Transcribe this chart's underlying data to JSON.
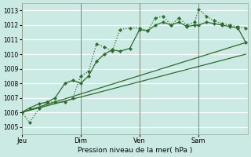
{
  "background_color": "#cceae4",
  "grid_color": "#ffffff",
  "line_color": "#2d6a2d",
  "xlabel": "Pression niveau de la mer( hPa )",
  "ylim": [
    1004.5,
    1013.5
  ],
  "yticks": [
    1005,
    1006,
    1007,
    1008,
    1009,
    1010,
    1011,
    1012,
    1013
  ],
  "xtick_labels": [
    "Jeu",
    "Dim",
    "Ven",
    "Sam"
  ],
  "xtick_positions": [
    0,
    3.0,
    6.0,
    9.0
  ],
  "xlim": [
    0,
    11.5
  ],
  "series1_x": [
    0.0,
    0.4,
    0.9,
    1.3,
    1.7,
    2.2,
    2.6,
    3.0,
    3.4,
    3.8,
    4.2,
    4.6,
    5.0,
    5.5,
    6.0,
    6.4,
    6.8,
    7.2,
    7.6,
    8.0,
    8.4,
    8.8,
    9.0,
    9.4,
    9.8,
    10.2,
    10.6,
    11.0,
    11.4
  ],
  "series1_y": [
    1006.0,
    1005.3,
    1006.3,
    1006.7,
    1006.7,
    1006.7,
    1007.0,
    1008.5,
    1008.8,
    1010.7,
    1010.5,
    1010.2,
    1011.7,
    1011.8,
    1011.8,
    1011.6,
    1012.5,
    1012.6,
    1012.0,
    1012.5,
    1012.0,
    1012.2,
    1013.1,
    1012.6,
    1012.3,
    1012.1,
    1012.0,
    1011.9,
    1011.8
  ],
  "series2_x": [
    0.0,
    0.4,
    0.9,
    1.3,
    1.7,
    2.2,
    2.6,
    3.0,
    3.4,
    3.8,
    4.2,
    4.6,
    5.0,
    5.5,
    6.0,
    6.4,
    6.8,
    7.2,
    7.6,
    8.0,
    8.4,
    8.8,
    9.0,
    9.4,
    9.8,
    10.2,
    10.6,
    11.0,
    11.4
  ],
  "series2_y": [
    1006.0,
    1006.3,
    1006.6,
    1006.7,
    1007.0,
    1008.0,
    1008.2,
    1008.0,
    1008.5,
    1009.5,
    1010.0,
    1010.3,
    1010.2,
    1010.4,
    1011.7,
    1011.6,
    1012.0,
    1012.2,
    1012.0,
    1012.2,
    1011.9,
    1012.0,
    1012.0,
    1012.2,
    1012.1,
    1012.0,
    1011.9,
    1011.8,
    1010.8
  ],
  "series3_x": [
    0.0,
    11.4
  ],
  "series3_y": [
    1006.0,
    1010.8
  ],
  "series4_x": [
    0.0,
    11.4
  ],
  "series4_y": [
    1006.0,
    1010.0
  ]
}
